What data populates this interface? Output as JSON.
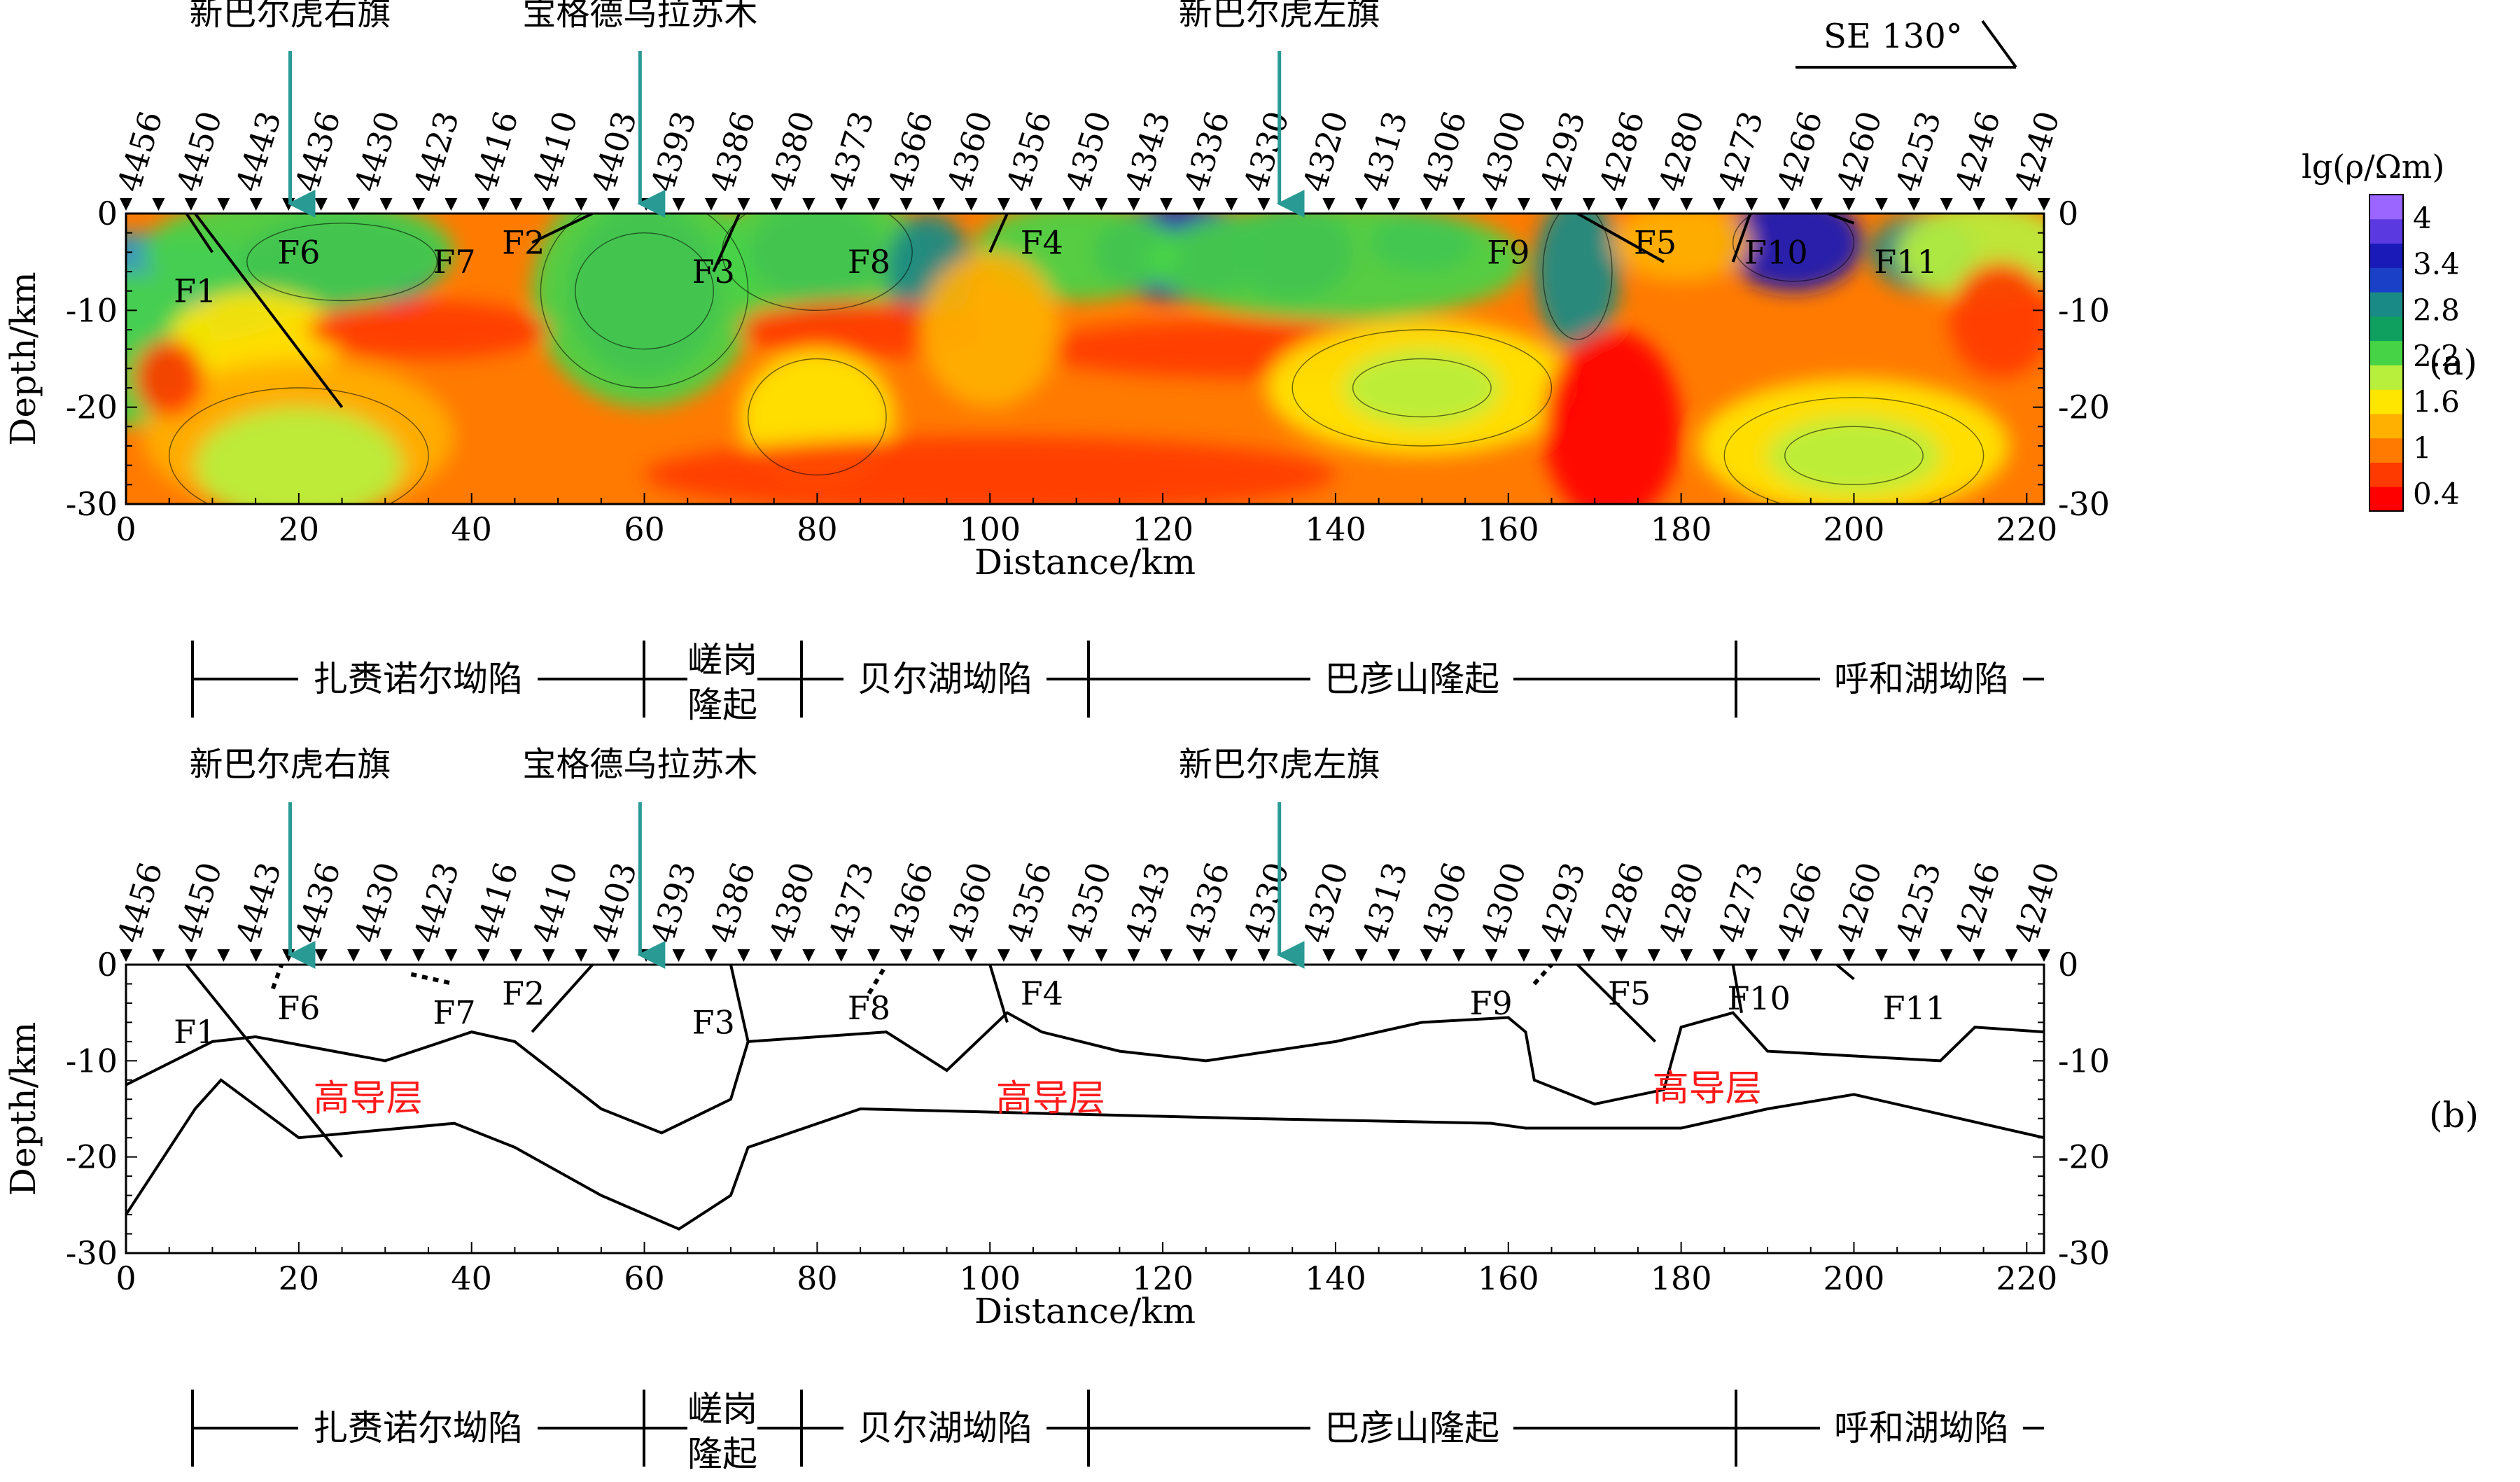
{
  "chart_data": [
    {
      "type": "heatmap",
      "panel": "(a)",
      "xlabel": "Distance/km",
      "ylabel": "Depth/km",
      "xlim": [
        0,
        222
      ],
      "ylim": [
        -30,
        0
      ],
      "x_ticks": [
        0,
        20,
        40,
        60,
        80,
        100,
        120,
        140,
        160,
        180,
        200,
        220
      ],
      "y_ticks": [
        0,
        -10,
        -20,
        -30
      ],
      "colorbar": {
        "title": "lg(ρ/Ωm)",
        "labels": [
          "4",
          "3.4",
          "2.8",
          "2.2",
          "1.6",
          "1",
          "0.4"
        ],
        "colors": [
          "#ff0000",
          "#ff3a00",
          "#ff7a00",
          "#ffb000",
          "#ffe600",
          "#b8ef3c",
          "#46d446",
          "#0fa060",
          "#1a8a86",
          "#1a40c8",
          "#1a1ab8",
          "#5a3ae0",
          "#9a66ff"
        ]
      },
      "stations": [
        "4456",
        "4450",
        "4443",
        "4436",
        "4430",
        "4423",
        "4416",
        "4410",
        "4403",
        "4393",
        "4386",
        "4380",
        "4373",
        "4366",
        "4360",
        "4356",
        "4350",
        "4343",
        "4336",
        "4330",
        "4320",
        "4313",
        "4306",
        "4300",
        "4293",
        "4286",
        "4280",
        "4273",
        "4266",
        "4260",
        "4253",
        "4246",
        "4240"
      ],
      "towns": [
        {
          "name": "新巴尔虎右旗",
          "x": 19
        },
        {
          "name": "宝格德乌拉苏木",
          "x": 59.5
        },
        {
          "name": "新巴尔虎左旗",
          "x": 133.5
        }
      ],
      "direction": "SE 130°",
      "faults": [
        "F1",
        "F6",
        "F7",
        "F2",
        "F3",
        "F8",
        "F4",
        "F9",
        "F5",
        "F10",
        "F11"
      ]
    },
    {
      "type": "line",
      "panel": "(b)",
      "xlabel": "Distance/km",
      "ylabel": "Depth/km",
      "xlim": [
        0,
        222
      ],
      "ylim": [
        -30,
        0
      ],
      "x_ticks": [
        0,
        20,
        40,
        60,
        80,
        100,
        120,
        140,
        160,
        180,
        200,
        220
      ],
      "y_ticks": [
        0,
        -10,
        -20,
        -30
      ],
      "annotation_label": "高导层",
      "faults": [
        "F1",
        "F6",
        "F7",
        "F2",
        "F3",
        "F8",
        "F4",
        "F9",
        "F5",
        "F10",
        "F11"
      ]
    }
  ],
  "units": [
    {
      "name": "扎赉诺尔坳陷"
    },
    {
      "name": "嵯岗隆起"
    },
    {
      "name": "贝尔湖坳陷"
    },
    {
      "name": "巴彦山隆起"
    },
    {
      "name": "呼和湖坳陷"
    }
  ]
}
